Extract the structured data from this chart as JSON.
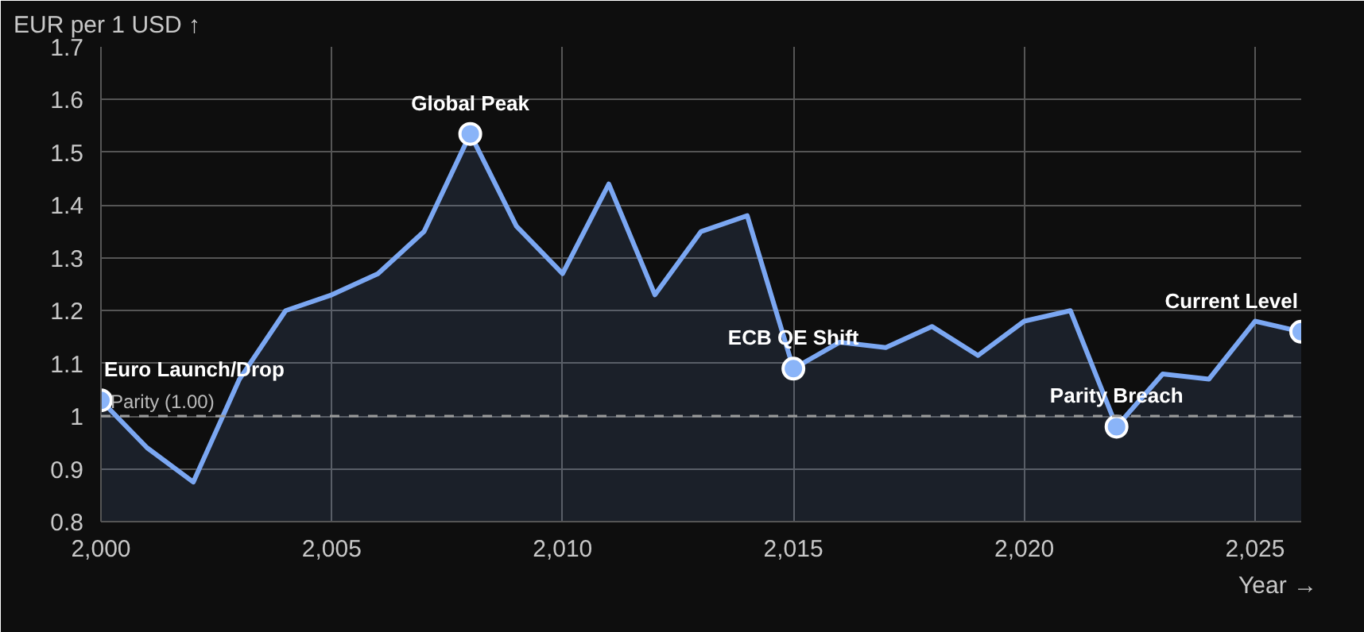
{
  "chart_data": {
    "type": "area",
    "xlabel": "Year →",
    "ylabel": "EUR per 1 USD ↑",
    "x": [
      2000,
      2001,
      2002,
      2003,
      2004,
      2005,
      2006,
      2007,
      2008,
      2009,
      2010,
      2011,
      2012,
      2013,
      2014,
      2015,
      2016,
      2017,
      2018,
      2019,
      2020,
      2021,
      2022,
      2023,
      2024,
      2025,
      2026
    ],
    "series": [
      {
        "color": "#7ba7f2",
        "marker": "none",
        "values": [
          1.03,
          0.94,
          0.875,
          1.07,
          1.2,
          1.23,
          1.27,
          1.35,
          1.535,
          1.36,
          1.27,
          1.44,
          1.23,
          1.35,
          1.38,
          1.09,
          1.14,
          1.13,
          1.17,
          1.115,
          1.18,
          1.2,
          0.98,
          1.08,
          1.07,
          1.18,
          1.16
        ]
      },
      {
        "type": "scatter",
        "color": "#8ab4f8",
        "marker": "circle",
        "x": [
          2000,
          2008,
          2015,
          2022,
          2026
        ],
        "values": [
          1.03,
          1.535,
          1.09,
          0.98,
          1.16
        ]
      }
    ],
    "annotations": [
      {
        "text": "Euro Launch/Drop",
        "x": 2000,
        "y": 1.03
      },
      {
        "text": "Global Peak",
        "x": 2008,
        "y": 1.535
      },
      {
        "text": "ECB QE Shift",
        "x": 2015,
        "y": 1.09
      },
      {
        "text": "Parity Breach",
        "x": 2022,
        "y": 0.98
      },
      {
        "text": "Current Level",
        "x": 2026,
        "y": 1.16
      }
    ],
    "ref_lines": [
      {
        "axis": "y",
        "value": 1.0,
        "label": "Parity (1.00)",
        "color": "#9a9a9a",
        "line_style": "dashed"
      }
    ],
    "xlim": [
      2000,
      2026
    ],
    "ylim": [
      0.8,
      1.7
    ],
    "xticks": [
      {
        "value": 2000,
        "label": "2,000"
      },
      {
        "value": 2005,
        "label": "2,005"
      },
      {
        "value": 2010,
        "label": "2,010"
      },
      {
        "value": 2015,
        "label": "2,015"
      },
      {
        "value": 2020,
        "label": "2,020"
      },
      {
        "value": 2025,
        "label": "2,025"
      }
    ],
    "yticks": [
      0.8,
      0.9,
      1.0,
      1.1,
      1.2,
      1.3,
      1.4,
      1.5,
      1.6,
      1.7
    ],
    "grid": true
  }
}
